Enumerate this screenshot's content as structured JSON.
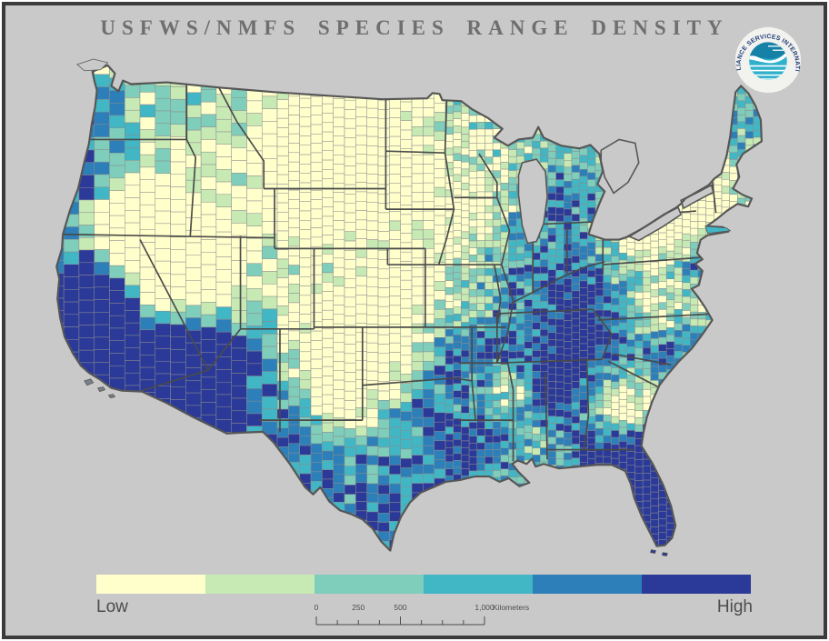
{
  "title": "USFWS/NMFS SPECIES RANGE DENSITY",
  "logo": {
    "text": "COMPLIANCE SERVICES INTERNATIONAL"
  },
  "legend": {
    "low_label": "Low",
    "high_label": "High",
    "classes": [
      "#FFFFCC",
      "#C7E9B4",
      "#7FCDBB",
      "#41B6C4",
      "#2C7FB8",
      "#2B3A98"
    ]
  },
  "scale_bar": {
    "tick_labels": [
      "0",
      "250",
      "500",
      "1,000"
    ],
    "unit_label": "Kilometers",
    "max_km": 1000
  },
  "map": {
    "type": "choropleth",
    "subject": "Contiguous U.S. counties shaded by USFWS/NMFS species range density",
    "background_color": "#C9C9C9",
    "outline_color": "#565656",
    "state_line_color": "#4a4a4a",
    "county_line_color": "#8c8c8c",
    "high_density_regions": [
      "California",
      "Southern Arizona",
      "Florida peninsula",
      "Eastern Tennessee / Kentucky Appalachians",
      "Alabama",
      "Gulf Coast / Louisiana",
      "South and West Texas",
      "Pacific Northwest coast",
      "Carolina coast"
    ],
    "low_density_regions": [
      "Nevada / Great Basin",
      "Montana and Dakotas plains",
      "Kansas / Oklahoma / Texas Panhandle",
      "Upstate New York / Pennsylvania",
      "Central Georgia",
      "Mississippi",
      "Iowa"
    ]
  }
}
